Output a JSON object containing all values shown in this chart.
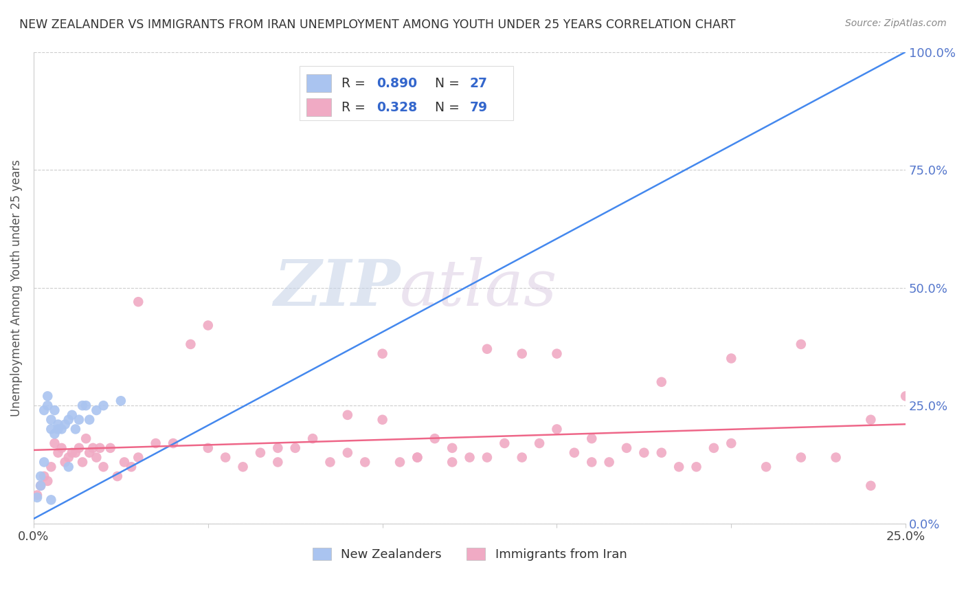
{
  "title": "NEW ZEALANDER VS IMMIGRANTS FROM IRAN UNEMPLOYMENT AMONG YOUTH UNDER 25 YEARS CORRELATION CHART",
  "source": "Source: ZipAtlas.com",
  "ylabel": "Unemployment Among Youth under 25 years",
  "xlim": [
    0.0,
    0.25
  ],
  "ylim": [
    0.0,
    1.0
  ],
  "nz_color": "#aac4f0",
  "iran_color": "#f0aac4",
  "nz_R": 0.89,
  "nz_N": 27,
  "iran_R": 0.328,
  "iran_N": 79,
  "nz_line_color": "#4488ee",
  "iran_line_color": "#ee6688",
  "legend_label_nz": "New Zealanders",
  "legend_label_iran": "Immigrants from Iran",
  "watermark_zip": "ZIP",
  "watermark_atlas": "atlas",
  "background_color": "#ffffff",
  "grid_color": "#cccccc",
  "right_axis_color": "#5577cc",
  "title_color": "#333333",
  "legend_R_color": "#3366cc",
  "legend_N_color": "#3366cc",
  "legend_label_color": "#333333",
  "nz_x": [
    0.001,
    0.002,
    0.002,
    0.003,
    0.003,
    0.004,
    0.004,
    0.005,
    0.005,
    0.006,
    0.006,
    0.007,
    0.007,
    0.008,
    0.009,
    0.01,
    0.011,
    0.012,
    0.013,
    0.014,
    0.015,
    0.016,
    0.018,
    0.02,
    0.025,
    0.01,
    0.005
  ],
  "nz_y": [
    0.055,
    0.08,
    0.1,
    0.13,
    0.24,
    0.25,
    0.27,
    0.2,
    0.22,
    0.24,
    0.19,
    0.2,
    0.21,
    0.2,
    0.21,
    0.22,
    0.23,
    0.2,
    0.22,
    0.25,
    0.25,
    0.22,
    0.24,
    0.25,
    0.26,
    0.12,
    0.05
  ],
  "iran_x": [
    0.001,
    0.002,
    0.003,
    0.004,
    0.005,
    0.006,
    0.007,
    0.008,
    0.009,
    0.01,
    0.011,
    0.012,
    0.013,
    0.014,
    0.015,
    0.016,
    0.017,
    0.018,
    0.019,
    0.02,
    0.022,
    0.024,
    0.026,
    0.028,
    0.03,
    0.035,
    0.04,
    0.045,
    0.05,
    0.055,
    0.06,
    0.065,
    0.07,
    0.075,
    0.08,
    0.085,
    0.09,
    0.095,
    0.1,
    0.105,
    0.11,
    0.115,
    0.12,
    0.125,
    0.13,
    0.135,
    0.14,
    0.145,
    0.15,
    0.155,
    0.16,
    0.165,
    0.17,
    0.175,
    0.18,
    0.185,
    0.19,
    0.195,
    0.2,
    0.21,
    0.22,
    0.23,
    0.24,
    0.25,
    0.03,
    0.05,
    0.07,
    0.09,
    0.11,
    0.13,
    0.15,
    0.2,
    0.22,
    0.24,
    0.1,
    0.12,
    0.14,
    0.16,
    0.18
  ],
  "iran_y": [
    0.06,
    0.08,
    0.1,
    0.09,
    0.12,
    0.17,
    0.15,
    0.16,
    0.13,
    0.14,
    0.15,
    0.15,
    0.16,
    0.13,
    0.18,
    0.15,
    0.16,
    0.14,
    0.16,
    0.12,
    0.16,
    0.1,
    0.13,
    0.12,
    0.14,
    0.17,
    0.17,
    0.38,
    0.16,
    0.14,
    0.12,
    0.15,
    0.13,
    0.16,
    0.18,
    0.13,
    0.15,
    0.13,
    0.22,
    0.13,
    0.14,
    0.18,
    0.16,
    0.14,
    0.14,
    0.17,
    0.14,
    0.17,
    0.2,
    0.15,
    0.18,
    0.13,
    0.16,
    0.15,
    0.3,
    0.12,
    0.12,
    0.16,
    0.17,
    0.12,
    0.38,
    0.14,
    0.22,
    0.27,
    0.47,
    0.42,
    0.16,
    0.23,
    0.14,
    0.37,
    0.36,
    0.35,
    0.14,
    0.08,
    0.36,
    0.13,
    0.36,
    0.13,
    0.15
  ]
}
